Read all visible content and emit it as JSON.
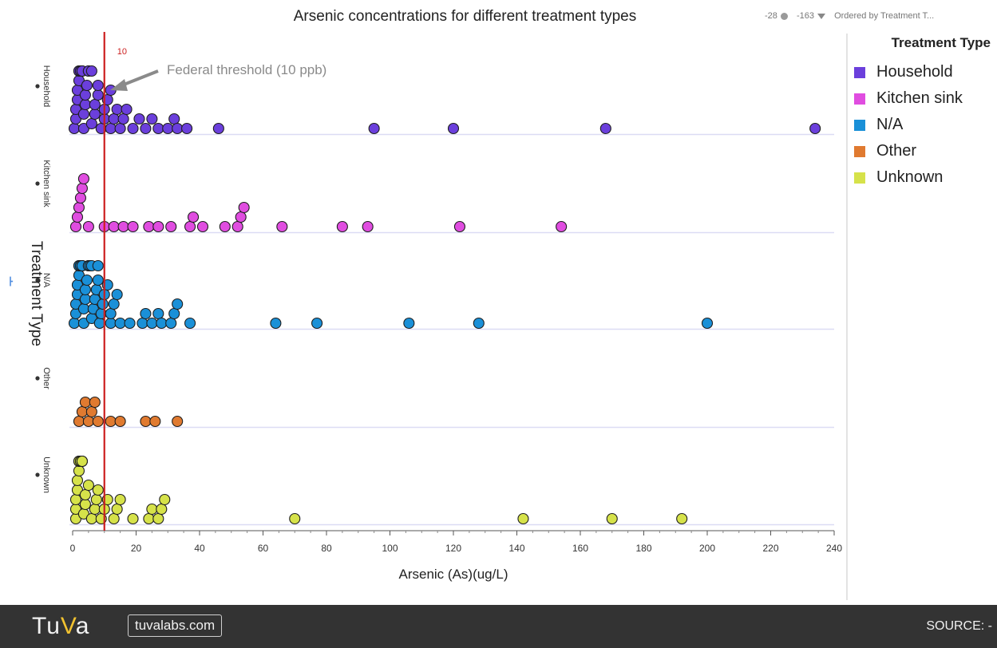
{
  "title": "Arsenic concentrations for different treatment types",
  "controls": {
    "count_dot_value": "-28",
    "count_filter_value": "-163",
    "order_label": "Ordered by Treatment T..."
  },
  "legend": {
    "title": "Treatment Type",
    "items": [
      {
        "label": "Household",
        "color": "#6b3fdc"
      },
      {
        "label": "Kitchen sink",
        "color": "#e04de0"
      },
      {
        "label": "N/A",
        "color": "#1a90d8"
      },
      {
        "label": "Other",
        "color": "#e07a30"
      },
      {
        "label": "Unknown",
        "color": "#d6e24a"
      }
    ]
  },
  "footer": {
    "logo_text_pre": "Tu",
    "logo_text_v": "V",
    "logo_text_post": "a",
    "link": "tuvalabs.com",
    "source": "SOURCE: -"
  },
  "chart_data": {
    "type": "scatter",
    "title": "Arsenic concentrations for different treatment types",
    "xlabel": "Arsenic (As)(ug/L)",
    "ylabel": "Treatment Type",
    "xlim": [
      0,
      240
    ],
    "xticks": [
      0,
      20,
      40,
      60,
      80,
      100,
      120,
      140,
      160,
      180,
      200,
      220,
      240
    ],
    "categories": [
      "Household",
      "Kitchen sink",
      "N/A",
      "Other",
      "Unknown"
    ],
    "threshold": {
      "value": 10,
      "label": "10",
      "annotation": "Federal threshold (10 ppb)",
      "color": "#cc1f1f"
    },
    "grid": false,
    "legend_position": "right",
    "series": [
      {
        "name": "Household",
        "color": "#6b3fdc",
        "values": [
          0.5,
          1,
          1,
          1.5,
          1.5,
          2,
          2,
          2,
          2.5,
          2.5,
          3,
          3,
          3,
          3.5,
          3.5,
          4,
          4,
          4.5,
          5,
          5,
          6,
          6,
          7,
          7,
          8,
          8,
          9,
          10,
          10,
          11,
          12,
          12,
          13,
          14,
          15,
          16,
          17,
          19,
          21,
          23,
          25,
          27,
          30,
          32,
          33,
          36,
          46,
          95,
          120,
          168,
          234
        ]
      },
      {
        "name": "Kitchen sink",
        "color": "#e04de0",
        "values": [
          1,
          1.5,
          2,
          2.5,
          3,
          3.5,
          5,
          10,
          13,
          16,
          19,
          24,
          27,
          31,
          37,
          38,
          41,
          48,
          52,
          53,
          54,
          66,
          85,
          93,
          122,
          154
        ]
      },
      {
        "name": "N/A",
        "color": "#1a90d8",
        "values": [
          0.5,
          1,
          1,
          1.5,
          1.5,
          2,
          2,
          2,
          2.5,
          2.5,
          3,
          3,
          3,
          3.5,
          3.5,
          4,
          4,
          4.5,
          5,
          5,
          5.5,
          6,
          6,
          6.5,
          7,
          7.5,
          8,
          8,
          8.5,
          9,
          9.5,
          10,
          11,
          12,
          12,
          13,
          14,
          15,
          18,
          22,
          23,
          25,
          27,
          28,
          31,
          32,
          33,
          37,
          64,
          77,
          106,
          128,
          200
        ]
      },
      {
        "name": "Other",
        "color": "#e07a30",
        "values": [
          2,
          3,
          4,
          5,
          6,
          7,
          8,
          12,
          15,
          23,
          26,
          33
        ]
      },
      {
        "name": "Unknown",
        "color": "#d6e24a",
        "values": [
          1,
          1,
          1,
          1.5,
          1.5,
          2,
          2,
          2,
          2.5,
          2.5,
          3,
          3,
          3,
          3.5,
          4,
          4,
          5,
          6,
          7,
          7.5,
          8,
          9,
          10,
          11,
          13,
          14,
          15,
          19,
          24,
          25,
          27,
          28,
          29,
          70,
          142,
          170,
          192
        ]
      }
    ]
  }
}
